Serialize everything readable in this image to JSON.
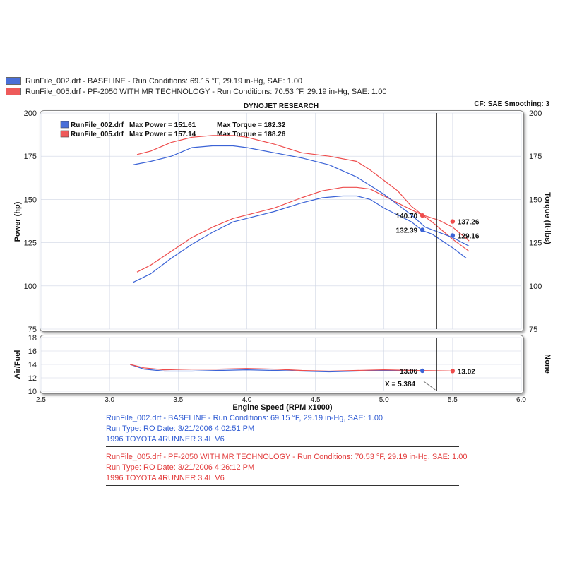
{
  "legend_top": [
    {
      "text": "RunFile_002.drf - BASELINE  -  Run Conditions: 69.15 °F, 29.19 in-Hg, SAE: 1.00",
      "color": "#4a6fd8"
    },
    {
      "text": "RunFile_005.drf - PF-2050 WITH MR TECHNOLOGY  -  Run Conditions: 70.53 °F, 29.19 in-Hg, SAE: 1.00",
      "color": "#ee5a5a"
    }
  ],
  "header": {
    "title": "DYNOJET RESEARCH",
    "cf": "CF: SAE  Smoothing: 3"
  },
  "inner_legend": [
    {
      "run": "RunFile_002.drf",
      "power_text": "Max Power = 151.61",
      "torque_text": "Max Torque = 182.32",
      "color": "#4a6fd8"
    },
    {
      "run": "RunFile_005.drf",
      "power_text": "Max Power = 157.14",
      "torque_text": "Max Torque = 188.26",
      "color": "#ee5a5a"
    }
  ],
  "colors": {
    "blue": "#3b63d6",
    "red": "#ee4c4c",
    "grid": "#cfd6e4",
    "frame": "#333333"
  },
  "chart_data": [
    {
      "type": "line",
      "xlabel": "Engine Speed (RPM x1000)",
      "ylabel": "Power (hp)",
      "y2label": "Torque (ft-lbs)",
      "xlim": [
        2.5,
        6.0
      ],
      "ylim": [
        75,
        200
      ],
      "y2lim": [
        75,
        200
      ],
      "x_ticks": [
        "2.5",
        "3.0",
        "3.5",
        "4.0",
        "4.5",
        "5.0",
        "5.5",
        "6.0"
      ],
      "y_ticks": [
        "75",
        "100",
        "125",
        "150",
        "175",
        "200"
      ],
      "y2_ticks": [
        "75",
        "100",
        "125",
        "150",
        "175",
        "200"
      ],
      "grid": true,
      "cursor_x": 5.384,
      "series": [
        {
          "name": "RunFile_002.drf Power",
          "color": "#3b63d6",
          "x": [
            3.17,
            3.3,
            3.45,
            3.6,
            3.75,
            3.9,
            4.0,
            4.2,
            4.4,
            4.55,
            4.7,
            4.8,
            4.9,
            5.0,
            5.1,
            5.2,
            5.28,
            5.35,
            5.5,
            5.6
          ],
          "y": [
            102,
            107,
            116,
            124,
            131,
            137,
            139,
            143,
            148,
            151,
            152,
            152,
            150,
            145,
            141,
            137,
            132,
            130,
            122,
            116
          ]
        },
        {
          "name": "RunFile_005.drf Power",
          "color": "#ee4c4c",
          "x": [
            3.2,
            3.3,
            3.45,
            3.6,
            3.75,
            3.9,
            4.0,
            4.2,
            4.4,
            4.55,
            4.7,
            4.8,
            4.9,
            5.0,
            5.1,
            5.2,
            5.28,
            5.35,
            5.5,
            5.62
          ],
          "y": [
            108,
            112,
            120,
            128,
            134,
            139,
            141,
            145,
            151,
            155,
            157,
            157,
            156,
            152,
            148,
            144,
            141,
            137,
            127,
            120
          ]
        },
        {
          "name": "RunFile_002.drf Torque",
          "color": "#3b63d6",
          "x": [
            3.17,
            3.3,
            3.45,
            3.6,
            3.75,
            3.9,
            4.0,
            4.2,
            4.4,
            4.6,
            4.8,
            4.9,
            5.0,
            5.1,
            5.2,
            5.3,
            5.4,
            5.5,
            5.62
          ],
          "y": [
            170,
            172,
            175,
            180,
            181,
            181,
            180,
            177,
            174,
            170,
            163,
            158,
            153,
            147,
            141,
            134,
            131,
            128,
            123
          ]
        },
        {
          "name": "RunFile_005.drf Torque",
          "color": "#ee4c4c",
          "x": [
            3.2,
            3.3,
            3.45,
            3.6,
            3.75,
            3.9,
            4.0,
            4.2,
            4.4,
            4.6,
            4.8,
            4.9,
            5.0,
            5.1,
            5.2,
            5.28,
            5.4,
            5.5,
            5.62
          ],
          "y": [
            176,
            178,
            183,
            186,
            187,
            187,
            186,
            182,
            177,
            175,
            172,
            167,
            161,
            155,
            146,
            141,
            138,
            134,
            126
          ]
        }
      ],
      "markers": [
        {
          "label": "140.70",
          "x": 5.28,
          "y": 140.7,
          "color": "#ee4c4c",
          "side": "left"
        },
        {
          "label": "132.39",
          "x": 5.28,
          "y": 132.39,
          "color": "#3b63d6",
          "side": "left"
        },
        {
          "label": "137.26",
          "x": 5.5,
          "y": 137.26,
          "color": "#ee4c4c",
          "side": "right"
        },
        {
          "label": "129.16",
          "x": 5.5,
          "y": 129.16,
          "color": "#3b63d6",
          "side": "right"
        }
      ]
    },
    {
      "type": "line",
      "xlabel": "Engine Speed (RPM x1000)",
      "ylabel": "Air/Fuel",
      "y2label": "None",
      "xlim": [
        2.5,
        6.0
      ],
      "ylim": [
        10,
        18
      ],
      "y_ticks": [
        "10",
        "12",
        "14",
        "16",
        "18"
      ],
      "grid": true,
      "cursor_x": 5.384,
      "cursor_label": "X = 5.384",
      "series": [
        {
          "name": "RunFile_002.drf Air/Fuel",
          "color": "#3b63d6",
          "x": [
            3.15,
            3.25,
            3.4,
            3.6,
            3.8,
            4.0,
            4.2,
            4.4,
            4.6,
            4.8,
            5.0,
            5.2,
            5.28
          ],
          "y": [
            14.0,
            13.3,
            13.0,
            13.0,
            13.1,
            13.2,
            13.1,
            13.0,
            12.9,
            13.0,
            13.1,
            13.1,
            13.06
          ]
        },
        {
          "name": "RunFile_005.drf Air/Fuel",
          "color": "#ee4c4c",
          "x": [
            3.15,
            3.25,
            3.4,
            3.6,
            3.8,
            4.0,
            4.2,
            4.4,
            4.6,
            4.8,
            5.0,
            5.2,
            5.5
          ],
          "y": [
            14.0,
            13.5,
            13.2,
            13.3,
            13.3,
            13.4,
            13.3,
            13.1,
            13.0,
            13.1,
            13.2,
            13.1,
            13.02
          ]
        }
      ],
      "markers": [
        {
          "label": "13.06",
          "x": 5.28,
          "y": 13.06,
          "color": "#3b63d6",
          "side": "left"
        },
        {
          "label": "13.02",
          "x": 5.5,
          "y": 13.02,
          "color": "#ee4c4c",
          "side": "right"
        }
      ]
    }
  ],
  "info_blue": [
    "RunFile_002.drf - BASELINE  -  Run Conditions: 69.15 °F, 29.19 in-Hg, SAE: 1.00",
    "Run Type: RO  Date: 3/21/2006 4:02:51 PM",
    "1996 TOYOTA 4RUNNER 3.4L V6"
  ],
  "info_red": [
    "RunFile_005.drf - PF-2050 WITH MR TECHNOLOGY  -  Run Conditions: 70.53 °F, 29.19 in-Hg, SAE: 1.00",
    "Run Type: RO  Date: 3/21/2006 4:26:12 PM",
    "1996 TOYOTA 4RUNNER 3.4L V6"
  ]
}
